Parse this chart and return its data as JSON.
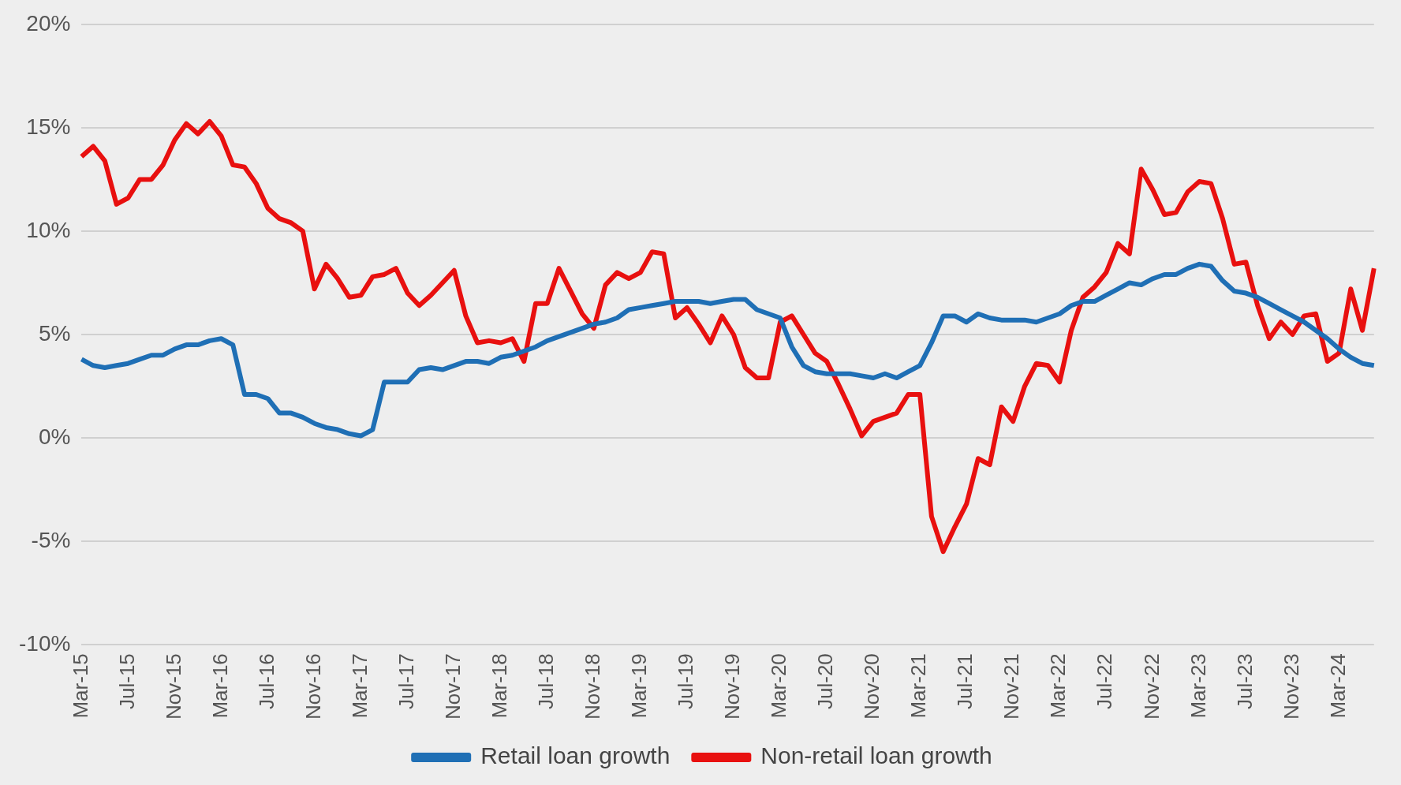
{
  "chart_data": {
    "type": "line",
    "categories": [
      "Mar-15",
      null,
      null,
      null,
      "Jul-15",
      null,
      null,
      null,
      "Nov-15",
      null,
      null,
      null,
      "Mar-16",
      null,
      null,
      null,
      "Jul-16",
      null,
      null,
      null,
      "Nov-16",
      null,
      null,
      null,
      "Mar-17",
      null,
      null,
      null,
      "Jul-17",
      null,
      null,
      null,
      "Nov-17",
      null,
      null,
      null,
      "Mar-18",
      null,
      null,
      null,
      "Jul-18",
      null,
      null,
      null,
      "Nov-18",
      null,
      null,
      null,
      "Mar-19",
      null,
      null,
      null,
      "Jul-19",
      null,
      null,
      null,
      "Nov-19",
      null,
      null,
      null,
      "Mar-20",
      null,
      null,
      null,
      "Jul-20",
      null,
      null,
      null,
      "Nov-20",
      null,
      null,
      null,
      "Mar-21",
      null,
      null,
      null,
      "Jul-21",
      null,
      null,
      null,
      "Nov-21",
      null,
      null,
      null,
      "Mar-22",
      null,
      null,
      null,
      "Jul-22",
      null,
      null,
      null,
      "Nov-22",
      null,
      null,
      null,
      "Mar-23",
      null,
      null,
      null,
      "Jul-23",
      null,
      null,
      null,
      "Nov-23",
      null,
      null,
      null,
      "Mar-24",
      null,
      null,
      null
    ],
    "series": [
      {
        "name": "Retail loan growth",
        "color": "#1f6fb5",
        "values": [
          3.8,
          3.5,
          3.4,
          3.5,
          3.6,
          3.8,
          4.0,
          4.0,
          4.3,
          4.5,
          4.5,
          4.7,
          4.8,
          4.5,
          2.1,
          2.1,
          1.9,
          1.2,
          1.2,
          1.0,
          0.7,
          0.5,
          0.4,
          0.2,
          0.1,
          0.4,
          2.7,
          2.7,
          2.7,
          3.3,
          3.4,
          3.3,
          3.5,
          3.7,
          3.7,
          3.6,
          3.9,
          4.0,
          4.2,
          4.4,
          4.7,
          4.9,
          5.1,
          5.3,
          5.5,
          5.6,
          5.8,
          6.2,
          6.3,
          6.4,
          6.5,
          6.6,
          6.6,
          6.6,
          6.5,
          6.6,
          6.7,
          6.7,
          6.2,
          6.0,
          5.8,
          4.4,
          3.5,
          3.2,
          3.1,
          3.1,
          3.1,
          3.0,
          2.9,
          3.1,
          2.9,
          3.2,
          3.5,
          4.6,
          5.9,
          5.9,
          5.6,
          6.0,
          5.8,
          5.7,
          5.7,
          5.7,
          5.6,
          5.8,
          6.0,
          6.4,
          6.6,
          6.6,
          6.9,
          7.2,
          7.5,
          7.4,
          7.7,
          7.9,
          7.9,
          8.2,
          8.4,
          8.3,
          7.6,
          7.1,
          7.0,
          6.8,
          6.5,
          6.2,
          5.9,
          5.6,
          5.2,
          4.8,
          4.3,
          3.9,
          3.6,
          3.5
        ]
      },
      {
        "name": "Non-retail loan growth",
        "color": "#e8100f",
        "values": [
          13.6,
          14.1,
          13.4,
          11.3,
          11.6,
          12.5,
          12.5,
          13.2,
          14.4,
          15.2,
          14.7,
          15.3,
          14.6,
          13.2,
          13.1,
          12.3,
          11.1,
          10.6,
          10.4,
          10.0,
          7.2,
          8.4,
          7.7,
          6.8,
          6.9,
          7.8,
          7.9,
          8.2,
          7.0,
          6.4,
          6.9,
          7.5,
          8.1,
          5.9,
          4.6,
          4.7,
          4.6,
          4.8,
          3.7,
          6.5,
          6.5,
          8.2,
          7.1,
          6.0,
          5.3,
          7.4,
          8.0,
          7.7,
          8.0,
          9.0,
          8.9,
          5.8,
          6.3,
          5.5,
          4.6,
          5.9,
          5.0,
          3.4,
          2.9,
          2.9,
          5.6,
          5.9,
          5.0,
          4.1,
          3.7,
          2.6,
          1.4,
          0.1,
          0.8,
          1.0,
          1.2,
          2.1,
          2.1,
          -3.8,
          -5.5,
          -4.3,
          -3.2,
          -1.0,
          -1.3,
          1.5,
          0.8,
          2.5,
          3.6,
          3.5,
          2.7,
          5.2,
          6.8,
          7.3,
          8.0,
          9.4,
          8.9,
          13.0,
          12.0,
          10.8,
          10.9,
          11.9,
          12.4,
          12.3,
          10.6,
          8.4,
          8.5,
          6.4,
          4.8,
          5.6,
          5.0,
          5.9,
          6.0,
          3.7,
          4.1,
          7.2,
          5.2,
          8.2
        ]
      }
    ],
    "ylim": [
      -10,
      20
    ],
    "yticks": [
      {
        "value": -10,
        "label": "-10%"
      },
      {
        "value": -5,
        "label": "-5%"
      },
      {
        "value": 0,
        "label": "0%"
      },
      {
        "value": 5,
        "label": "5%"
      },
      {
        "value": 10,
        "label": "10%"
      },
      {
        "value": 15,
        "label": "15%"
      },
      {
        "value": 20,
        "label": "20%"
      }
    ],
    "grid": "y",
    "legend": "bottom",
    "marker": "none",
    "line_style": "solid"
  }
}
